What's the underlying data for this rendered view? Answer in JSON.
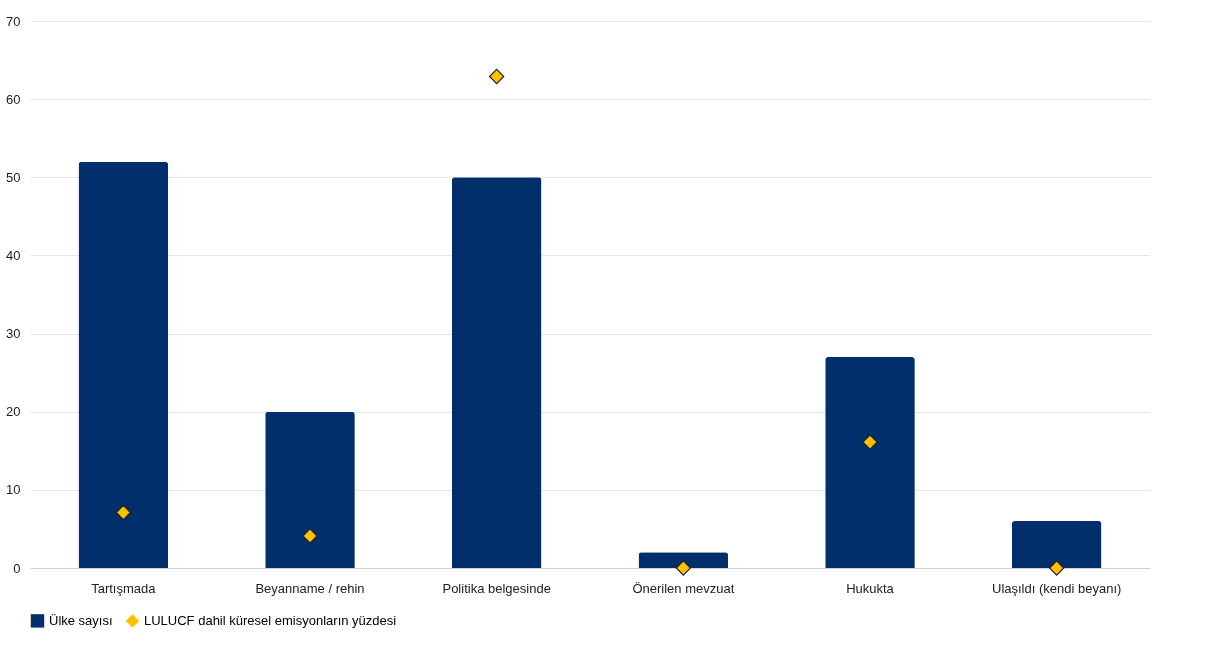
{
  "chart_data": {
    "type": "bar",
    "categories": [
      "Tartışmada",
      "Beyanname / rehin",
      "Politika belgesinde",
      "Önerilen mevzuat",
      "Hukukta",
      "Ulaşıldı (kendi beyanı)"
    ],
    "series": [
      {
        "name": "Ülke sayısı",
        "color": "#002f6c",
        "values": [
          52,
          20,
          50,
          2,
          27,
          6
        ]
      },
      {
        "name": "LULUCF dahil küresel emisyonların yüzdesi",
        "type": "scatter",
        "marker": "diamond",
        "color": "#ffc000",
        "values": [
          7.1,
          4.1,
          62.9,
          0,
          16.1,
          0
        ]
      }
    ],
    "ylim": [
      0,
      70
    ],
    "yticks": [
      0,
      10,
      20,
      30,
      40,
      50,
      60,
      70
    ],
    "grid": "y",
    "legend": "bottom left"
  }
}
